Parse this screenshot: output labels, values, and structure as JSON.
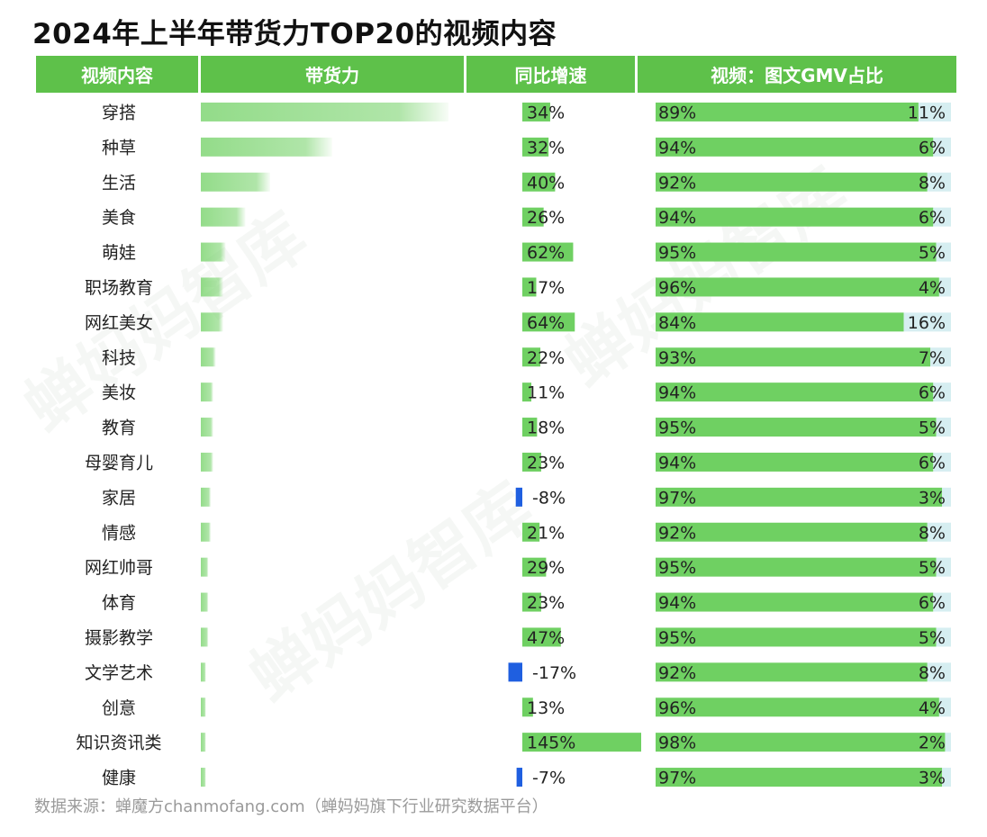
{
  "title": "2024年上半年带货力TOP20的视频内容",
  "columns": [
    "视频内容",
    "带货力",
    "同比增速",
    "视频：图文GMV占比"
  ],
  "source": "数据来源：蝉魔方chanmofang.com（蝉妈妈旗下行业研究数据平台）",
  "watermark": "蝉妈妈智库",
  "colors": {
    "header": "#5ec14a",
    "bar_green": "#6fd062",
    "bar_negative": "#1f5fe0",
    "share_remainder": "#d6eef1"
  },
  "chart_data": {
    "type": "table",
    "categories": [
      "穿搭",
      "种草",
      "生活",
      "美食",
      "萌娃",
      "职场教育",
      "网红美女",
      "科技",
      "美妆",
      "教育",
      "母婴育儿",
      "家居",
      "情感",
      "网红帅哥",
      "体育",
      "摄影教学",
      "文学艺术",
      "创意",
      "知识资讯类",
      "健康"
    ],
    "sales_power": [
      100,
      53,
      28,
      18,
      10,
      9,
      9,
      6,
      5,
      5,
      5,
      4,
      4,
      3,
      3,
      3,
      2,
      2,
      2,
      2
    ],
    "growth_labels": [
      "34%",
      "32%",
      "40%",
      "26%",
      "62%",
      "17%",
      "64%",
      "22%",
      "11%",
      "18%",
      "23%",
      "-8%",
      "21%",
      "29%",
      "23%",
      "47%",
      "-17%",
      "13%",
      "145%",
      "-7%"
    ],
    "growth": [
      34,
      32,
      40,
      26,
      62,
      17,
      64,
      22,
      11,
      18,
      23,
      -8,
      21,
      29,
      23,
      47,
      -17,
      13,
      145,
      -7
    ],
    "video_share_labels": [
      "89%",
      "94%",
      "92%",
      "94%",
      "95%",
      "96%",
      "84%",
      "93%",
      "94%",
      "95%",
      "94%",
      "97%",
      "92%",
      "95%",
      "94%",
      "95%",
      "92%",
      "96%",
      "98%",
      "97%"
    ],
    "video_share": [
      89,
      94,
      92,
      94,
      95,
      96,
      84,
      93,
      94,
      95,
      94,
      97,
      92,
      95,
      94,
      95,
      92,
      96,
      98,
      97
    ],
    "image_share_labels": [
      "11%",
      "6%",
      "8%",
      "6%",
      "5%",
      "4%",
      "16%",
      "7%",
      "6%",
      "5%",
      "6%",
      "3%",
      "8%",
      "5%",
      "6%",
      "5%",
      "8%",
      "4%",
      "2%",
      "3%"
    ],
    "image_share": [
      11,
      6,
      8,
      6,
      5,
      4,
      16,
      7,
      6,
      5,
      6,
      3,
      8,
      5,
      6,
      5,
      8,
      4,
      2,
      3
    ]
  }
}
